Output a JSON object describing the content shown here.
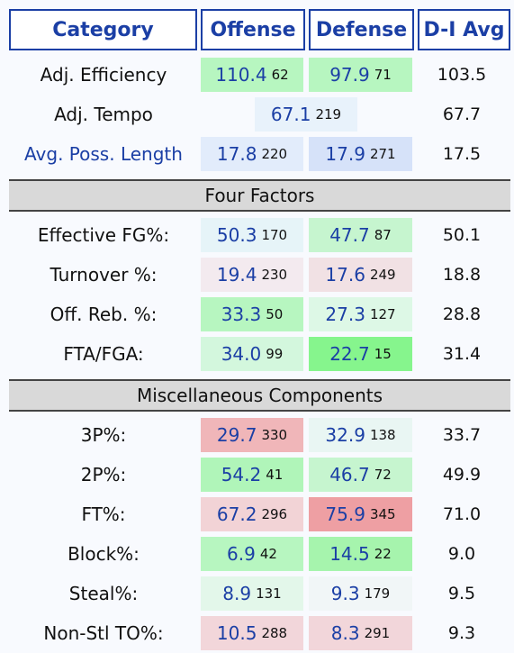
{
  "header": {
    "category": "Category",
    "offense": "Offense",
    "defense": "Defense",
    "avg": "D-I Avg"
  },
  "colors": {
    "header_blue": "#1b3fa5",
    "strong_green": "#86f58d",
    "mid_green": "#b7f6c0",
    "light_green": "#ddf8e6",
    "light_blue": "#e2ecfb",
    "mid_blue": "#d6e2f9",
    "light_pink": "#f1e1e4",
    "mid_pink": "#f2c9cc",
    "strong_pink": "#ee9fa3"
  },
  "rows_top": [
    {
      "label": "Adj. Efficiency",
      "off_val": "110.4",
      "off_rank": "62",
      "def_val": "97.9",
      "def_rank": "71",
      "avg": "103.5",
      "off_color": "#b7f6c0",
      "def_color": "#b7f6c0"
    },
    {
      "label": "Adj. Tempo",
      "tempo_val": "67.1",
      "tempo_rank": "219",
      "avg": "67.7",
      "tempo_color": "#e8f2fb"
    },
    {
      "label": "Avg. Poss. Length",
      "off_val": "17.8",
      "off_rank": "220",
      "def_val": "17.9",
      "def_rank": "271",
      "avg": "17.5",
      "off_color": "#e2ecfb",
      "def_color": "#d6e2f9"
    }
  ],
  "sections": {
    "four_factors": "Four Factors",
    "misc": "Miscellaneous Components"
  },
  "four_factors": [
    {
      "label": "Effective FG%:",
      "off_val": "50.3",
      "off_rank": "170",
      "def_val": "47.7",
      "def_rank": "87",
      "avg": "50.1",
      "off_color": "#e6f4f8",
      "def_color": "#c6f5cf"
    },
    {
      "label": "Turnover %:",
      "off_val": "19.4",
      "off_rank": "230",
      "def_val": "17.6",
      "def_rank": "249",
      "avg": "18.8",
      "off_color": "#f3eaef",
      "def_color": "#f1e1e4"
    },
    {
      "label": "Off. Reb. %:",
      "off_val": "33.3",
      "off_rank": "50",
      "def_val": "27.3",
      "def_rank": "127",
      "avg": "28.8",
      "off_color": "#b7f6c0",
      "def_color": "#ddf8e6"
    },
    {
      "label": "FTA/FGA:",
      "off_val": "34.0",
      "off_rank": "99",
      "def_val": "22.7",
      "def_rank": "15",
      "avg": "31.4",
      "off_color": "#d3f7dd",
      "def_color": "#86f58d"
    }
  ],
  "misc": [
    {
      "label": "3P%:",
      "off_val": "29.7",
      "off_rank": "330",
      "def_val": "32.9",
      "def_rank": "138",
      "avg": "33.7",
      "off_color": "#f0b6b9",
      "def_color": "#e9f6f3"
    },
    {
      "label": "2P%:",
      "off_val": "54.2",
      "off_rank": "41",
      "def_val": "46.7",
      "def_rank": "72",
      "avg": "49.9",
      "off_color": "#b0f5b9",
      "def_color": "#c6f5cf"
    },
    {
      "label": "FT%:",
      "off_val": "67.2",
      "off_rank": "296",
      "def_val": "75.9",
      "def_rank": "345",
      "avg": "71.0",
      "off_color": "#f2d3d6",
      "def_color": "#ee9fa3"
    },
    {
      "label": "Block%:",
      "off_val": "6.9",
      "off_rank": "42",
      "def_val": "14.5",
      "def_rank": "22",
      "avg": "9.0",
      "off_color": "#b7f6c0",
      "def_color": "#a6f4ad"
    },
    {
      "label": "Steal%:",
      "off_val": "8.9",
      "off_rank": "131",
      "def_val": "9.3",
      "def_rank": "179",
      "avg": "9.5",
      "off_color": "#e3f7ea",
      "def_color": "#f1f6f7"
    },
    {
      "label": "Non-Stl TO%:",
      "off_val": "10.5",
      "off_rank": "288",
      "def_val": "8.3",
      "def_rank": "291",
      "avg": "9.3",
      "off_color": "#f2d6da",
      "def_color": "#f2d6da"
    }
  ]
}
